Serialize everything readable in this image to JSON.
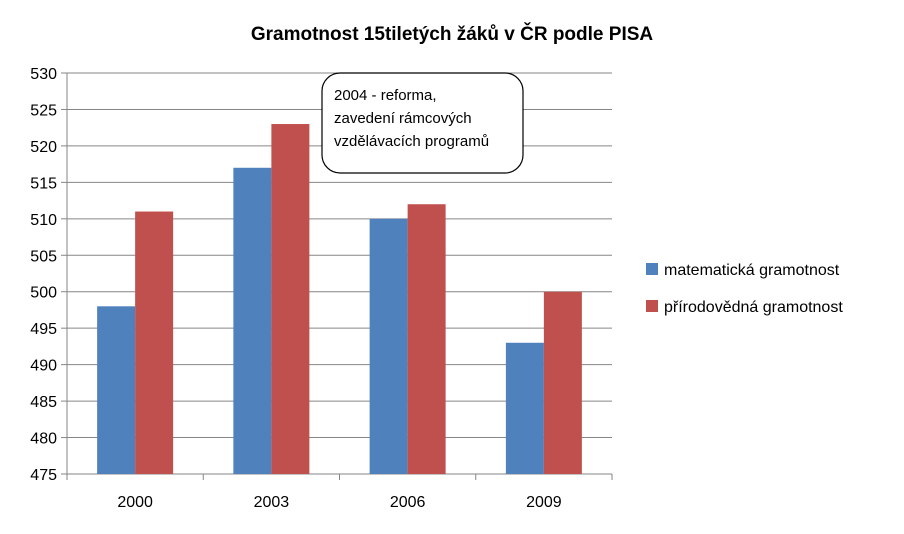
{
  "chart_data": {
    "type": "bar",
    "title": "Gramotnost 15tiletých žáků v ČR podle PISA",
    "xlabel": "",
    "ylabel": "",
    "categories": [
      "2000",
      "2003",
      "2006",
      "2009"
    ],
    "series": [
      {
        "name": "matematická gramotnost",
        "values": [
          498,
          517,
          510,
          493
        ],
        "color": "#4F81BD"
      },
      {
        "name": "přírodovědná gramotnost",
        "values": [
          511,
          523,
          512,
          500
        ],
        "color": "#C0504D"
      }
    ],
    "ylim": [
      475,
      530
    ],
    "ytick_step": 5,
    "grid": true,
    "legend_position": "right",
    "annotation": {
      "lines": [
        "2004 - reforma,",
        "zavedení rámcových",
        "vzdělávacích programů"
      ]
    }
  }
}
